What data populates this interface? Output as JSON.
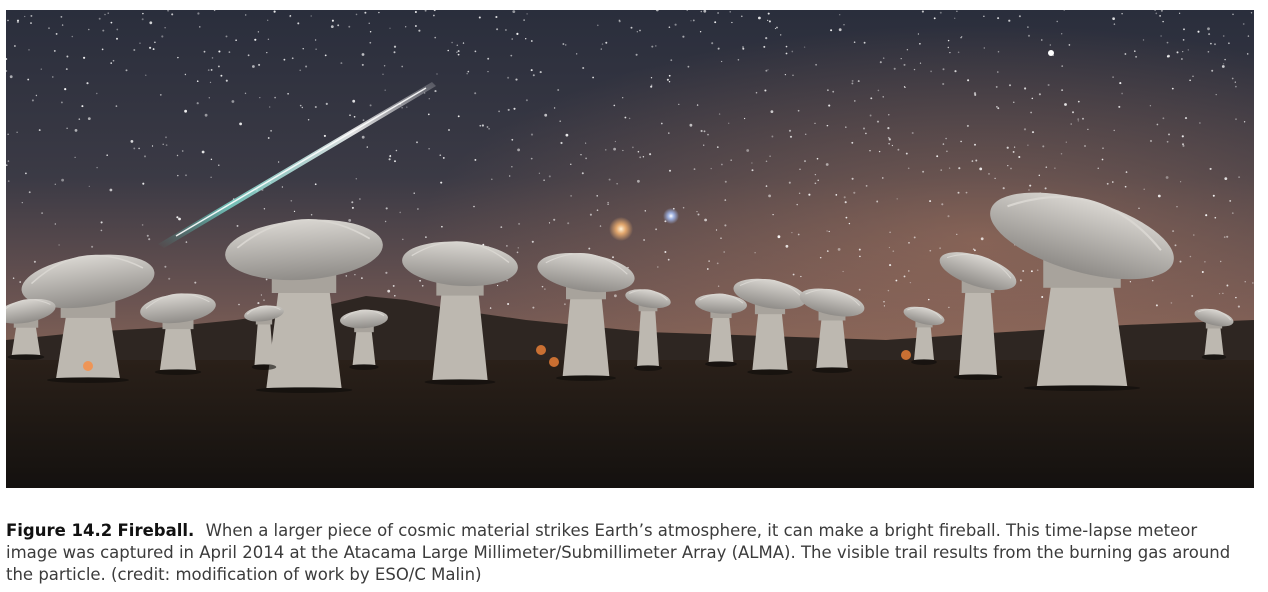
{
  "figure": {
    "label": "Figure 14.2",
    "title": "Fireball.",
    "caption": "When a larger piece of cosmic material strikes Earth’s atmosphere, it can make a bright fireball. This time-lapse meteor image was captured in April 2014 at the Atacama Large Millimeter/Submillimeter Array (ALMA). The visible trail results from the burning gas around the particle. (credit: modification of work by ESO/C Malin)"
  },
  "photo": {
    "sky_top_color": "#2b2f3d",
    "sky_horizon_color": "#9a6a55",
    "ground_color": "#1a1512",
    "meteor_color": "#c8f4ee",
    "dish_color": "#c9c6c2"
  }
}
